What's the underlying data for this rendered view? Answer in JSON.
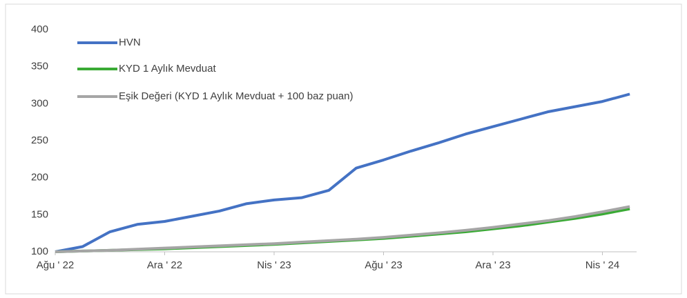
{
  "chart_data": {
    "type": "line",
    "categories": [
      "Ağu ' 22",
      null,
      null,
      null,
      "Ara ' 22",
      null,
      null,
      null,
      "Nis ' 23",
      null,
      null,
      null,
      "Ağu ' 23",
      null,
      null,
      null,
      "Ara ' 23",
      null,
      null,
      null,
      "Nis ' 24",
      null
    ],
    "series": [
      {
        "name": "HVN",
        "color": "#4472c4",
        "values": [
          100,
          107,
          127,
          137,
          141,
          148,
          155,
          165,
          170,
          173,
          183,
          213,
          224,
          236,
          247,
          259,
          269,
          279,
          289,
          296,
          303,
          313
        ]
      },
      {
        "name": "KYD 1 Aylık Mevduat",
        "color": "#3aaa35",
        "values": [
          100,
          101,
          102,
          103,
          104,
          105.5,
          107,
          108.5,
          110,
          112,
          114,
          116,
          118,
          121,
          124,
          127,
          131,
          135,
          140,
          145,
          151,
          158
        ]
      },
      {
        "name": "Eşik Değeri (KYD 1 Aylık Mevduat + 100 baz puan)",
        "color": "#a5a5a5",
        "values": [
          100,
          101,
          102,
          103.5,
          105,
          106.5,
          108,
          109.5,
          111,
          113,
          115,
          117,
          119.5,
          122.5,
          125.5,
          129,
          133,
          137.5,
          142,
          147.5,
          154,
          161
        ]
      }
    ],
    "ylim": [
      100,
      400
    ],
    "yticks": [
      100,
      150,
      200,
      250,
      300,
      350,
      400
    ],
    "grid": false,
    "legend": "top-left"
  }
}
